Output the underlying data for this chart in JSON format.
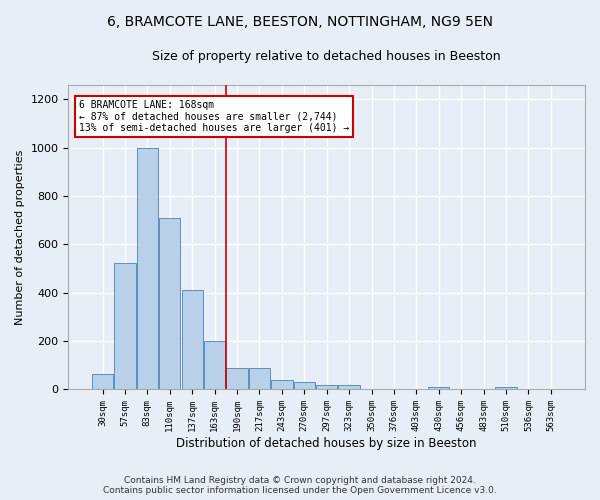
{
  "title_line1": "6, BRAMCOTE LANE, BEESTON, NOTTINGHAM, NG9 5EN",
  "title_line2": "Size of property relative to detached houses in Beeston",
  "xlabel": "Distribution of detached houses by size in Beeston",
  "ylabel": "Number of detached properties",
  "footer_line1": "Contains HM Land Registry data © Crown copyright and database right 2024.",
  "footer_line2": "Contains public sector information licensed under the Open Government Licence v3.0.",
  "categories": [
    "30sqm",
    "57sqm",
    "83sqm",
    "110sqm",
    "137sqm",
    "163sqm",
    "190sqm",
    "217sqm",
    "243sqm",
    "270sqm",
    "297sqm",
    "323sqm",
    "350sqm",
    "376sqm",
    "403sqm",
    "430sqm",
    "456sqm",
    "483sqm",
    "510sqm",
    "536sqm",
    "563sqm"
  ],
  "values": [
    65,
    525,
    1000,
    710,
    410,
    200,
    90,
    88,
    40,
    32,
    17,
    20,
    0,
    0,
    0,
    12,
    0,
    0,
    10,
    0,
    0
  ],
  "bar_color": "#b8d0e8",
  "bar_edge_color": "#5a8fc0",
  "highlight_label": "6 BRAMCOTE LANE: 168sqm",
  "annotation_smaller": "← 87% of detached houses are smaller (2,744)",
  "annotation_larger": "13% of semi-detached houses are larger (401) →",
  "annotation_box_color": "#ffffff",
  "annotation_box_edge": "#cc0000",
  "vline_color": "#cc0000",
  "vline_x": 5.5,
  "ylim": [
    0,
    1260
  ],
  "background_color": "#e8eef7",
  "grid_color": "#ffffff",
  "title_fontsize": 10,
  "subtitle_fontsize": 9,
  "footer_fontsize": 6.5,
  "ylabel_fontsize": 8,
  "xlabel_fontsize": 8.5
}
